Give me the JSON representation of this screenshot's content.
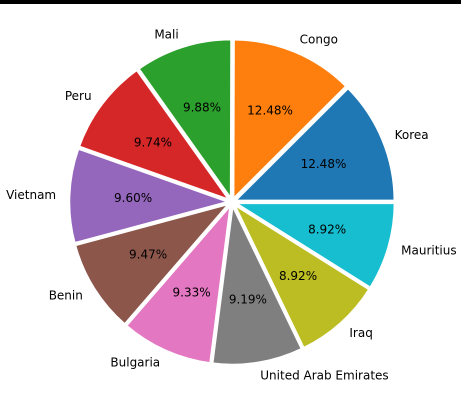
{
  "window": {
    "top_bar_color": "#000000"
  },
  "chart_data": {
    "type": "pie",
    "title": "",
    "categories": [
      "Korea",
      "Congo",
      "Mali",
      "Peru",
      "Vietnam",
      "Benin",
      "Bulgaria",
      "United Arab Emirates",
      "Iraq",
      "Mauritius"
    ],
    "values": [
      12.48,
      12.48,
      9.88,
      9.74,
      9.6,
      9.47,
      9.33,
      9.19,
      8.92,
      8.92
    ],
    "percent_labels": [
      "12.48%",
      "12.48%",
      "9.88%",
      "9.74%",
      "9.60%",
      "9.47%",
      "9.33%",
      "9.19%",
      "8.92%",
      "8.92%"
    ],
    "colors": [
      "#1f77b4",
      "#ff7f0e",
      "#2ca02c",
      "#d62728",
      "#9467bd",
      "#8c564b",
      "#e377c2",
      "#7f7f7f",
      "#bcbd22",
      "#17becf"
    ],
    "start_angle_deg": 0,
    "direction": "counterclockwise",
    "exploded": true,
    "wedge_edge_color": "#ffffff",
    "legend": "none"
  }
}
